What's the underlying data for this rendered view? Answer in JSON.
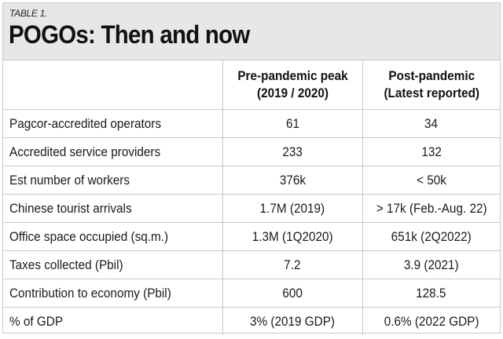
{
  "table_label": "TABLE 1.",
  "title": "POGOs: Then and now",
  "columns": [
    {
      "line1": "",
      "line2": ""
    },
    {
      "line1": "Pre-pandemic peak",
      "line2": "(2019 / 2020)"
    },
    {
      "line1": "Post-pandemic",
      "line2": "(Latest reported)"
    }
  ],
  "rows": [
    {
      "label": "Pagcor-accredited operators",
      "pre": "61",
      "post": "34"
    },
    {
      "label": "Accredited service providers",
      "pre": "233",
      "post": "132"
    },
    {
      "label": "Est number of workers",
      "pre": "376k",
      "post": "< 50k"
    },
    {
      "label": "Chinese tourist arrivals",
      "pre": "1.7M (2019)",
      "post": "> 17k (Feb.-Aug. 22)"
    },
    {
      "label": "Office space occupied (sq.m.)",
      "pre": "1.3M (1Q2020)",
      "post": "651k (2Q2022)"
    },
    {
      "label": "Taxes collected (Pbil)",
      "pre": "7.2",
      "post": "3.9 (2021)"
    },
    {
      "label": "Contribution to economy (Pbil)",
      "pre": "600",
      "post": "128.5"
    },
    {
      "label": "% of GDP",
      "pre": "3% (2019 GDP)",
      "post": "0.6% (2022 GDP)"
    }
  ],
  "colors": {
    "header_bg": "#e6e7e9",
    "grid": "#c9c9c9",
    "text": "#1a1a1a"
  }
}
